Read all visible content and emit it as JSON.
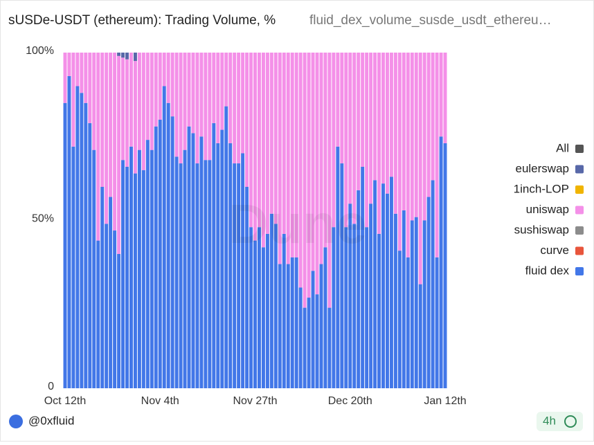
{
  "chart_data": {
    "type": "bar",
    "stacked": true,
    "title": "sUSDe-USDT (ethereum): Trading Volume, %",
    "subtitle": "fluid_dex_volume_susde_usdt_ethereu…",
    "watermark": "Dune",
    "author": "@0xfluid",
    "refresh": "4h",
    "legend": "right",
    "categories": [
      "Oct 12th",
      null,
      null,
      null,
      null,
      null,
      null,
      null,
      null,
      null,
      null,
      null,
      null,
      null,
      null,
      null,
      null,
      null,
      null,
      null,
      null,
      null,
      null,
      "Nov 4th",
      null,
      null,
      null,
      null,
      null,
      null,
      null,
      null,
      null,
      null,
      null,
      null,
      null,
      null,
      null,
      null,
      null,
      null,
      null,
      null,
      null,
      null,
      "Nov 27th",
      null,
      null,
      null,
      null,
      null,
      null,
      null,
      null,
      null,
      null,
      null,
      null,
      null,
      null,
      null,
      null,
      null,
      null,
      null,
      null,
      null,
      null,
      "Dec 20th",
      null,
      null,
      null,
      null,
      null,
      null,
      null,
      null,
      null,
      null,
      null,
      null,
      null,
      null,
      null,
      null,
      null,
      null,
      null,
      null,
      null,
      null,
      "Jan 12th"
    ],
    "ylim": [
      0,
      100
    ],
    "yticks": [
      0,
      {
        "value": 50,
        "label": "50%"
      },
      {
        "value": 100,
        "label": "100%"
      }
    ],
    "series": [
      {
        "name": "All",
        "color": "#555555",
        "values": [
          0,
          0,
          0,
          0,
          0,
          0,
          0,
          0,
          0,
          0,
          0,
          0,
          0,
          0,
          0,
          0,
          0,
          0,
          0,
          0,
          0,
          0,
          0,
          0,
          0,
          0,
          0,
          0,
          0,
          0,
          0,
          0,
          0,
          0,
          0,
          0,
          0,
          0,
          0,
          0,
          0,
          0,
          0,
          0,
          0,
          0,
          0,
          0,
          0,
          0,
          0,
          0,
          0,
          0,
          0,
          0,
          0,
          0,
          0,
          0,
          0,
          0,
          0,
          0,
          0,
          0,
          0,
          0,
          0,
          0,
          0,
          0,
          0,
          0,
          0,
          0,
          0,
          0,
          0,
          0,
          0,
          0,
          0,
          0,
          0,
          0,
          0,
          0,
          0,
          0,
          0,
          0,
          0
        ]
      },
      {
        "name": "eulerswap",
        "color": "#5868a8",
        "values": [
          0,
          0,
          0,
          0,
          0,
          0,
          0,
          0,
          0,
          0,
          0,
          0,
          0,
          1,
          1.5,
          2,
          0,
          2.5,
          0,
          0,
          0,
          0,
          0,
          0,
          0,
          0,
          0,
          0,
          0,
          0,
          0,
          0,
          0,
          0,
          0,
          0,
          0,
          0,
          0,
          0,
          0,
          0,
          0,
          0,
          0,
          0,
          0,
          0,
          0,
          0,
          0,
          0,
          0,
          0,
          0,
          0,
          0,
          0,
          0,
          0,
          0,
          0,
          0,
          0,
          0,
          0,
          0,
          0,
          0,
          0,
          0,
          0,
          0,
          0,
          0,
          0,
          0,
          0,
          0,
          0,
          0,
          0,
          0,
          0,
          0,
          0,
          0,
          0,
          0,
          0,
          0,
          0,
          0
        ]
      },
      {
        "name": "1inch-LOP",
        "color": "#f0b400",
        "values": [
          0,
          0,
          0,
          0,
          0,
          0,
          0,
          0,
          0,
          0,
          0,
          0,
          0,
          0,
          0,
          0,
          0,
          0,
          0,
          0,
          0,
          0,
          0,
          0,
          0,
          0,
          0,
          0,
          0,
          0,
          0,
          0,
          0,
          0,
          0,
          0,
          0,
          0,
          0,
          0,
          0,
          0,
          0,
          0,
          0,
          0,
          0,
          0,
          0,
          0,
          0,
          0,
          0,
          0,
          0,
          0,
          0,
          0,
          0,
          0,
          0,
          0,
          0,
          0,
          0,
          0,
          0,
          0,
          0,
          0,
          0,
          0,
          0,
          0,
          0,
          0,
          0,
          0,
          0,
          0,
          0,
          0,
          0,
          0,
          0,
          0,
          0,
          0,
          0,
          0,
          0,
          0,
          0
        ]
      },
      {
        "name": "uniswap",
        "color": "#f490e8",
        "values": [
          15,
          7,
          28,
          10,
          12,
          15,
          21,
          29,
          56,
          40,
          51,
          43,
          53,
          59,
          30.5,
          32,
          28,
          33.5,
          29,
          35,
          26,
          29,
          22,
          20,
          10,
          15,
          19,
          31,
          33,
          29,
          22,
          24,
          33,
          25,
          32,
          32,
          21,
          27,
          23,
          16,
          27,
          33,
          33,
          30,
          40,
          52,
          56,
          52,
          58,
          54,
          48,
          51,
          63,
          54,
          63,
          61,
          61,
          70,
          76,
          73,
          65,
          72,
          63,
          58,
          76,
          52,
          28,
          33,
          52,
          45,
          51,
          41,
          34,
          52,
          45,
          38,
          54,
          39,
          42,
          37,
          48,
          59,
          47,
          61,
          50,
          49,
          69,
          50,
          43,
          38,
          61,
          25,
          27
        ]
      },
      {
        "name": "sushiswap",
        "color": "#8c8c8c",
        "values": [
          0,
          0,
          0,
          0,
          0,
          0,
          0,
          0,
          0,
          0,
          0,
          0,
          0,
          0,
          0,
          0,
          0,
          0,
          0,
          0,
          0,
          0,
          0,
          0,
          0,
          0,
          0,
          0,
          0,
          0,
          0,
          0,
          0,
          0,
          0,
          0,
          0,
          0,
          0,
          0,
          0,
          0,
          0,
          0,
          0,
          0,
          0,
          0,
          0,
          0,
          0,
          0,
          0,
          0,
          0,
          0,
          0,
          0,
          0,
          0,
          0,
          0,
          0,
          0,
          0,
          0,
          0,
          0,
          0,
          0,
          0,
          0,
          0,
          0,
          0,
          0,
          0,
          0,
          0,
          0,
          0,
          0,
          0,
          0,
          0,
          0,
          0,
          0,
          0,
          0,
          0,
          0,
          0
        ]
      },
      {
        "name": "curve",
        "color": "#e8553c",
        "values": [
          0,
          0,
          0,
          0,
          0,
          0,
          0,
          0,
          0,
          0,
          0,
          0,
          0,
          0,
          0,
          0,
          0,
          0,
          0,
          0,
          0,
          0,
          0,
          0,
          0,
          0,
          0,
          0,
          0,
          0,
          0,
          0,
          0,
          0,
          0,
          0,
          0,
          0,
          0,
          0,
          0,
          0,
          0,
          0,
          0,
          0,
          0,
          0,
          0,
          0,
          0,
          0,
          0,
          0,
          0,
          0,
          0,
          0,
          0,
          0,
          0,
          0,
          0,
          0,
          0,
          0,
          0,
          0,
          0,
          0,
          0,
          0,
          0,
          0,
          0,
          0,
          0,
          0,
          0,
          0,
          0,
          0,
          0,
          0,
          0,
          0,
          0,
          0,
          0,
          0,
          0,
          0,
          0
        ]
      },
      {
        "name": "fluid dex",
        "color": "#4277e8",
        "values": [
          85,
          93,
          72,
          90,
          88,
          85,
          79,
          71,
          44,
          60,
          49,
          57,
          47,
          40,
          68,
          66,
          72,
          64,
          71,
          65,
          74,
          71,
          78,
          80,
          90,
          85,
          81,
          69,
          67,
          71,
          78,
          76,
          67,
          75,
          68,
          68,
          79,
          73,
          77,
          84,
          73,
          67,
          67,
          70,
          60,
          48,
          44,
          48,
          42,
          46,
          52,
          49,
          37,
          46,
          37,
          39,
          39,
          30,
          24,
          27,
          35,
          28,
          37,
          42,
          24,
          48,
          72,
          67,
          48,
          55,
          49,
          59,
          66,
          48,
          55,
          62,
          46,
          61,
          58,
          63,
          52,
          41,
          53,
          39,
          50,
          51,
          31,
          50,
          57,
          62,
          39,
          75,
          73
        ]
      }
    ]
  }
}
